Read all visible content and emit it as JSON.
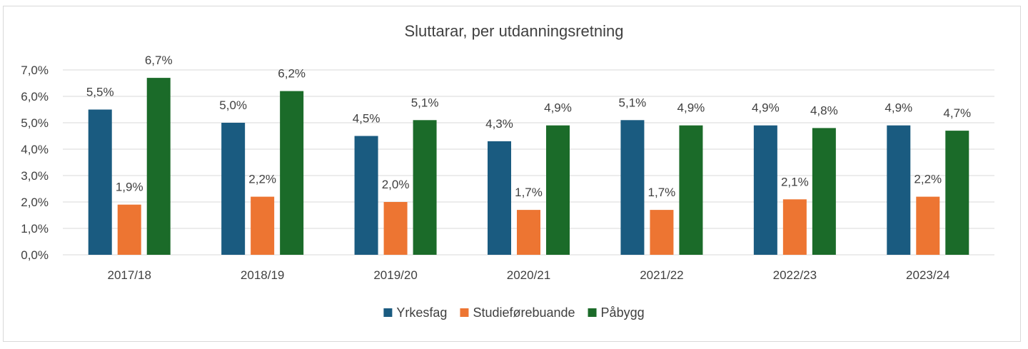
{
  "chart_data": {
    "type": "bar",
    "title": "Sluttarar, per utdanningsretning",
    "xlabel": "",
    "ylabel": "",
    "categories": [
      "2017/18",
      "2018/19",
      "2019/20",
      "2020/21",
      "2021/22",
      "2022/23",
      "2023/24"
    ],
    "series": [
      {
        "name": "Yrkesfag",
        "color": "#1a5b80",
        "values": [
          5.5,
          5.0,
          4.5,
          4.3,
          5.1,
          4.9,
          4.9
        ],
        "labels": [
          "5,5%",
          "5,0%",
          "4,5%",
          "4,3%",
          "5,1%",
          "4,9%",
          "4,9%"
        ]
      },
      {
        "name": "Studieførebuande",
        "color": "#ed7532",
        "values": [
          1.9,
          2.2,
          2.0,
          1.7,
          1.7,
          2.1,
          2.2
        ],
        "labels": [
          "1,9%",
          "2,2%",
          "2,0%",
          "1,7%",
          "1,7%",
          "2,1%",
          "2,2%"
        ]
      },
      {
        "name": "Påbygg",
        "color": "#1b6b29",
        "values": [
          6.7,
          6.2,
          5.1,
          4.9,
          4.9,
          4.8,
          4.7
        ],
        "labels": [
          "6,7%",
          "6,2%",
          "5,1%",
          "4,9%",
          "4,9%",
          "4,8%",
          "4,7%"
        ]
      }
    ],
    "ylim": [
      0,
      7
    ],
    "yticks": [
      0,
      1,
      2,
      3,
      4,
      5,
      6,
      7
    ],
    "ytick_labels": [
      "0,0%",
      "1,0%",
      "2,0%",
      "3,0%",
      "4,0%",
      "5,0%",
      "6,0%",
      "7,0%"
    ],
    "grid": true,
    "legend_position": "bottom"
  }
}
